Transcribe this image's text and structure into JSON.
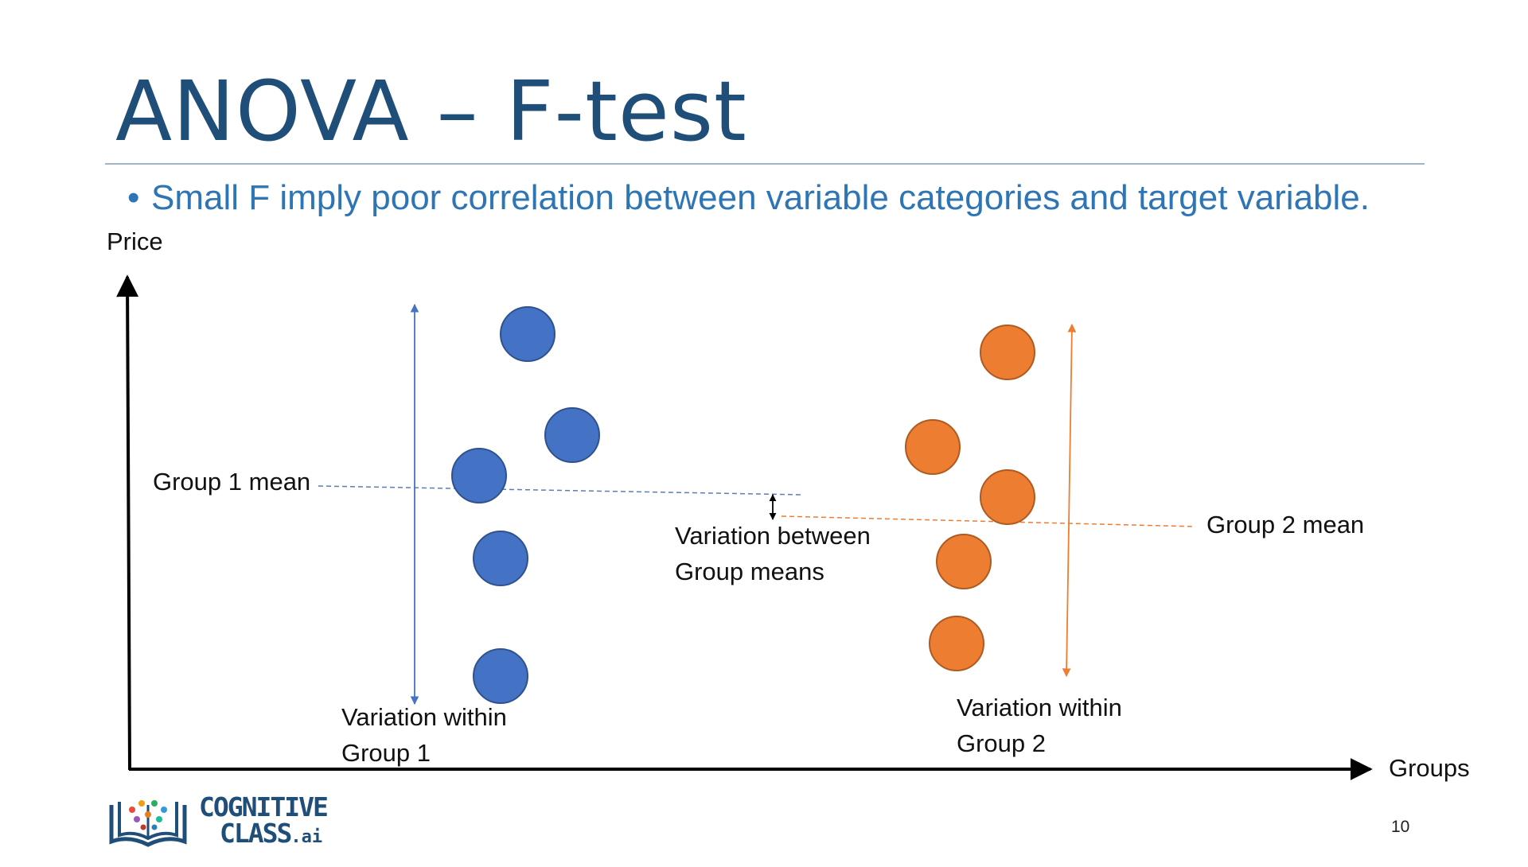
{
  "slide": {
    "title": "ANOVA – F-test",
    "bullet": "Small F  imply poor correlation between variable categories and target variable.",
    "page_number": "10"
  },
  "diagram": {
    "y_axis_label": "Price",
    "x_axis_label": "Groups",
    "group1_mean_label": "Group 1 mean",
    "group2_mean_label": "Group 2 mean",
    "between_label_line1": "Variation between",
    "between_label_line2": "Group means",
    "within1_label_line1": "Variation within",
    "within1_label_line2": "Group 1",
    "within2_label_line1": "Variation within",
    "within2_label_line2": "Group 2",
    "colors": {
      "group1": "#4472c4",
      "group2": "#ed7d31",
      "title": "#1f4e79",
      "bullet": "#2e75b6"
    }
  },
  "logo": {
    "line1": "COGNITIVE",
    "line2": "CLASS",
    "suffix": ".ai"
  }
}
